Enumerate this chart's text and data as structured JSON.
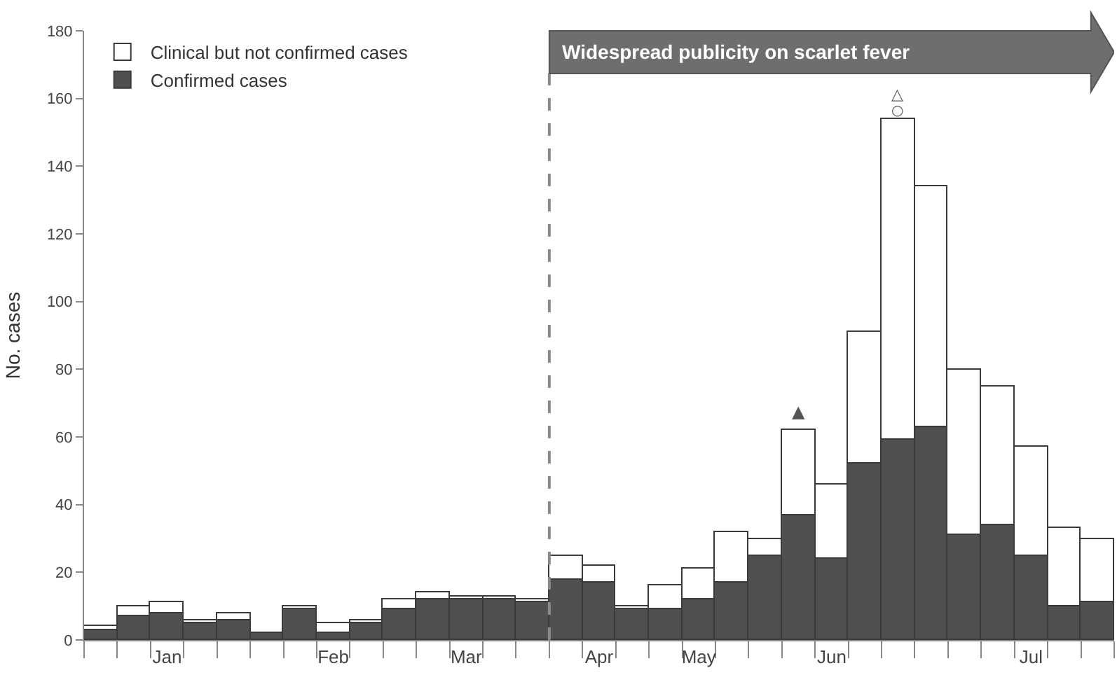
{
  "chart_data": {
    "type": "bar",
    "stacked": true,
    "categories": [
      null,
      null,
      "Jan",
      null,
      null,
      null,
      null,
      "Feb",
      null,
      null,
      null,
      "Mar",
      null,
      null,
      null,
      "Apr",
      null,
      null,
      "May",
      null,
      null,
      null,
      "Jun",
      null,
      null,
      null,
      null,
      null,
      "Jul",
      null,
      null
    ],
    "series": [
      {
        "name": "Confirmed cases",
        "color": "#505050",
        "values": [
          3,
          7,
          8,
          5,
          6,
          2,
          9,
          2,
          5,
          9,
          12,
          12,
          12,
          11,
          18,
          17,
          9,
          9,
          12,
          17,
          25,
          37,
          24,
          52,
          59,
          63,
          31,
          34,
          25,
          10,
          11
        ]
      },
      {
        "name": "Clinical but not confirmed cases",
        "color": "#ffffff",
        "values": [
          1,
          3,
          3,
          1,
          2,
          null,
          1,
          3,
          1,
          3,
          2,
          1,
          1,
          1,
          7,
          5,
          1,
          7,
          9,
          15,
          5,
          25,
          22,
          39,
          95,
          71,
          49,
          41,
          32,
          23,
          19
        ]
      }
    ],
    "ylabel": "No. cases",
    "ylim": [
      0,
      180
    ],
    "yticks": [
      0,
      20,
      40,
      60,
      80,
      100,
      120,
      140,
      160,
      180
    ],
    "annotations": [
      "Widespread publicity on scarlet fever",
      "▲",
      "△",
      "○"
    ],
    "legend": "top left"
  }
}
